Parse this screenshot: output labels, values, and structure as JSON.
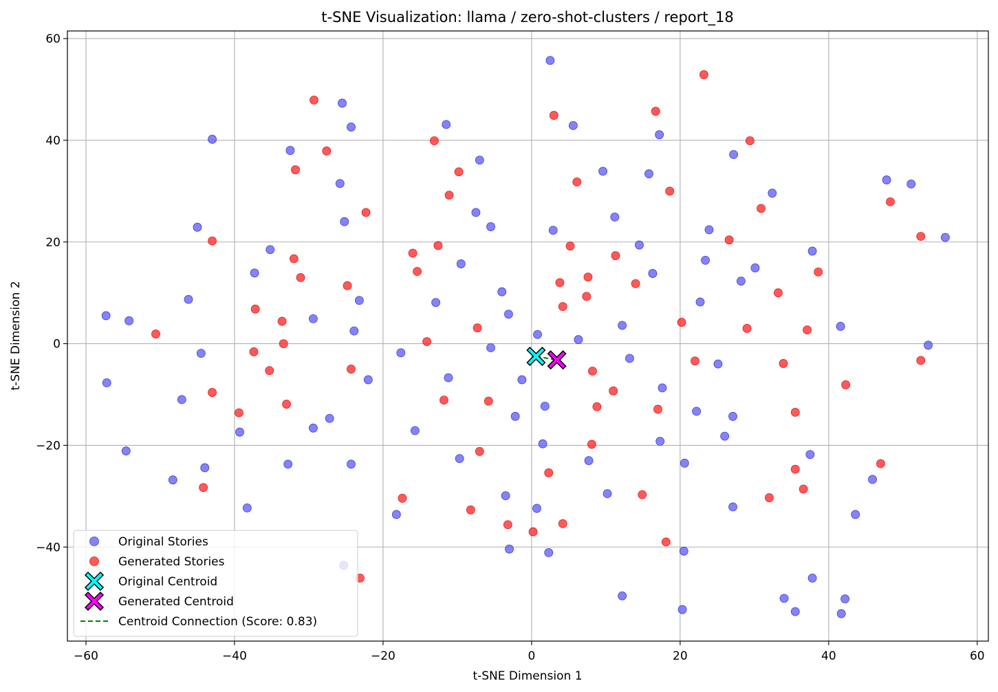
{
  "chart_data": {
    "type": "scatter",
    "title": "t-SNE Visualization: llama / zero-shot-clusters / report_18",
    "xlabel": "t-SNE Dimension 1",
    "ylabel": "t-SNE Dimension 2",
    "xlim": [
      -62.5,
      61.5
    ],
    "ylim": [
      -58.5,
      61.5
    ],
    "xticks": [
      -60,
      -40,
      -20,
      0,
      20,
      40,
      60
    ],
    "yticks": [
      -40,
      -20,
      0,
      20,
      40,
      60
    ],
    "xtick_labels": [
      "−60",
      "−40",
      "−20",
      "0",
      "20",
      "40",
      "60"
    ],
    "ytick_labels": [
      "−40",
      "−20",
      "0",
      "20",
      "40",
      "60"
    ],
    "grid": true,
    "legend_position": "lower-left",
    "series": [
      {
        "name": "Original Stories",
        "color": "#5b5bf5",
        "marker": "circle",
        "points": [
          [
            2.5,
            55.7
          ],
          [
            -25.5,
            47.3
          ],
          [
            -24.3,
            42.6
          ],
          [
            -43,
            40.2
          ],
          [
            -11.5,
            43.1
          ],
          [
            -32.5,
            38
          ],
          [
            -7,
            36.1
          ],
          [
            5.6,
            42.9
          ],
          [
            17.2,
            41.1
          ],
          [
            9.6,
            33.9
          ],
          [
            15.8,
            33.4
          ],
          [
            27.2,
            37.2
          ],
          [
            32.4,
            29.6
          ],
          [
            47.8,
            32.2
          ],
          [
            51.1,
            31.4
          ],
          [
            -25.8,
            31.5
          ],
          [
            -45,
            22.9
          ],
          [
            -25.2,
            24
          ],
          [
            -7.5,
            25.8
          ],
          [
            -5.5,
            23
          ],
          [
            2.9,
            22.3
          ],
          [
            11.2,
            24.9
          ],
          [
            23.9,
            22.4
          ],
          [
            55.7,
            20.9
          ],
          [
            -35.2,
            18.5
          ],
          [
            -37.3,
            13.9
          ],
          [
            14.5,
            19.4
          ],
          [
            23.4,
            16.4
          ],
          [
            37.8,
            18.2
          ],
          [
            30.1,
            14.9
          ],
          [
            28.2,
            12.3
          ],
          [
            -9.5,
            15.7
          ],
          [
            16.3,
            13.8
          ],
          [
            -46.2,
            8.7
          ],
          [
            -57.3,
            5.5
          ],
          [
            -54.2,
            4.5
          ],
          [
            -29.4,
            4.9
          ],
          [
            -23.2,
            8.5
          ],
          [
            -4,
            10.2
          ],
          [
            -3.1,
            5.8
          ],
          [
            -12.9,
            8.1
          ],
          [
            22.7,
            8.2
          ],
          [
            -23.9,
            2.5
          ],
          [
            -44.5,
            -1.9
          ],
          [
            -17.6,
            -1.8
          ],
          [
            -5.5,
            -0.8
          ],
          [
            0.8,
            1.8
          ],
          [
            6.3,
            0.8
          ],
          [
            12.2,
            3.6
          ],
          [
            41.6,
            3.4
          ],
          [
            53.4,
            -0.3
          ],
          [
            -57.2,
            -7.7
          ],
          [
            -47.1,
            -11
          ],
          [
            -22,
            -7.1
          ],
          [
            -11.2,
            -6.7
          ],
          [
            -1.3,
            -7.1
          ],
          [
            13.2,
            -2.9
          ],
          [
            25.1,
            -4
          ],
          [
            17.6,
            -8.7
          ],
          [
            -27.2,
            -14.7
          ],
          [
            -29.4,
            -16.6
          ],
          [
            -39.3,
            -17.4
          ],
          [
            -15.7,
            -17.1
          ],
          [
            -2.2,
            -14.3
          ],
          [
            1.8,
            -12.3
          ],
          [
            22.2,
            -13.3
          ],
          [
            27.1,
            -14.3
          ],
          [
            26,
            -18.2
          ],
          [
            -54.6,
            -21.1
          ],
          [
            -44,
            -24.4
          ],
          [
            -32.8,
            -23.7
          ],
          [
            -24.3,
            -23.7
          ],
          [
            -9.7,
            -22.6
          ],
          [
            1.5,
            -19.7
          ],
          [
            7.7,
            -23
          ],
          [
            17.3,
            -19.2
          ],
          [
            20.6,
            -23.5
          ],
          [
            37.5,
            -21.8
          ],
          [
            -48.3,
            -26.8
          ],
          [
            -38.3,
            -32.3
          ],
          [
            -18.2,
            -33.6
          ],
          [
            -3.5,
            -29.9
          ],
          [
            0.7,
            -32.4
          ],
          [
            10.2,
            -29.5
          ],
          [
            27.1,
            -32.1
          ],
          [
            43.6,
            -33.6
          ],
          [
            45.9,
            -26.7
          ],
          [
            -25.3,
            -43.6
          ],
          [
            -3,
            -40.4
          ],
          [
            2.3,
            -41.1
          ],
          [
            20.5,
            -40.8
          ],
          [
            12.2,
            -49.6
          ],
          [
            20.3,
            -52.3
          ],
          [
            34,
            -50.1
          ],
          [
            35.5,
            -52.7
          ],
          [
            37.8,
            -46.1
          ],
          [
            41.7,
            -53.1
          ],
          [
            42.2,
            -50.2
          ]
        ]
      },
      {
        "name": "Generated Stories",
        "color": "#ff3030",
        "marker": "circle",
        "points": [
          [
            -29.3,
            47.9
          ],
          [
            23.2,
            52.9
          ],
          [
            3,
            44.9
          ],
          [
            16.7,
            45.7
          ],
          [
            -13.1,
            39.9
          ],
          [
            -27.6,
            37.9
          ],
          [
            29.4,
            39.9
          ],
          [
            -31.8,
            34.2
          ],
          [
            -9.8,
            33.8
          ],
          [
            6.1,
            31.8
          ],
          [
            18.6,
            30
          ],
          [
            -11.1,
            29.2
          ],
          [
            -22.3,
            25.8
          ],
          [
            48.3,
            27.9
          ],
          [
            30.9,
            26.6
          ],
          [
            52.4,
            21.1
          ],
          [
            -43,
            20.2
          ],
          [
            26.6,
            20.4
          ],
          [
            -16,
            17.8
          ],
          [
            -12.6,
            19.3
          ],
          [
            5.2,
            19.2
          ],
          [
            11.3,
            17.3
          ],
          [
            -32,
            16.7
          ],
          [
            -15.4,
            14.2
          ],
          [
            38.6,
            14.1
          ],
          [
            -31.1,
            13
          ],
          [
            -24.8,
            11.4
          ],
          [
            3.8,
            12
          ],
          [
            7.6,
            13.1
          ],
          [
            14,
            11.8
          ],
          [
            33.2,
            10
          ],
          [
            4.2,
            7.3
          ],
          [
            7.4,
            9.3
          ],
          [
            -37.2,
            6.8
          ],
          [
            -33.6,
            4.4
          ],
          [
            -50.6,
            1.9
          ],
          [
            -33.4,
            0
          ],
          [
            -14.1,
            0.4
          ],
          [
            -7.3,
            3.1
          ],
          [
            20.2,
            4.2
          ],
          [
            29,
            3
          ],
          [
            37.1,
            2.7
          ],
          [
            -37.4,
            -1.6
          ],
          [
            -35.3,
            -5.3
          ],
          [
            -24.3,
            -5
          ],
          [
            22,
            -3.4
          ],
          [
            33.9,
            -3.9
          ],
          [
            52.4,
            -3.3
          ],
          [
            8.2,
            -5.4
          ],
          [
            -43,
            -9.6
          ],
          [
            -33,
            -11.9
          ],
          [
            -11.8,
            -11.1
          ],
          [
            -5.8,
            -11.3
          ],
          [
            11,
            -9.3
          ],
          [
            8.8,
            -12.4
          ],
          [
            17,
            -12.9
          ],
          [
            42.3,
            -8.1
          ],
          [
            -39.4,
            -13.6
          ],
          [
            35.5,
            -13.5
          ],
          [
            8.1,
            -19.8
          ],
          [
            -7,
            -21.2
          ],
          [
            2.3,
            -25.4
          ],
          [
            47,
            -23.6
          ],
          [
            -44.2,
            -28.3
          ],
          [
            -17.4,
            -30.4
          ],
          [
            -8.2,
            -32.7
          ],
          [
            14.9,
            -29.7
          ],
          [
            32,
            -30.3
          ],
          [
            35.5,
            -24.7
          ],
          [
            36.6,
            -28.6
          ],
          [
            -3.2,
            -35.6
          ],
          [
            0.2,
            -37
          ],
          [
            4.2,
            -35.4
          ],
          [
            18.1,
            -39
          ],
          [
            -23.1,
            -46.1
          ]
        ]
      }
    ],
    "centroids": [
      {
        "name": "Original Centroid",
        "x": 0.6,
        "y": -2.5,
        "color": "#00ffff",
        "marker": "X"
      },
      {
        "name": "Generated Centroid",
        "x": 3.4,
        "y": -3.2,
        "color": "#ff00ff",
        "marker": "X"
      }
    ],
    "centroid_connection": {
      "label": "Centroid Connection (Score: 0.83)",
      "color": "#008000",
      "style": "dashed"
    }
  }
}
